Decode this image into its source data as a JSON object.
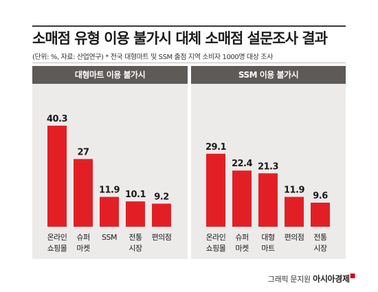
{
  "title": "소매점 유형 이용 불가시 대체 소매점 설문조사 결과",
  "subtitle": "(단위: %, 자료: 산업연구) * 전국 대형마트 및 SSM 출점 지역 소비자 1000명 대상 조사",
  "credit": {
    "label": "그래픽 문지원",
    "brand": "아시아경제"
  },
  "colors": {
    "bar": "#e31f26",
    "panel": "#ecebea",
    "header": "#5e5a58"
  },
  "chart_data": [
    {
      "type": "bar",
      "title": "대형마트 이용 불가시",
      "categories": [
        [
          "온라인",
          "쇼핑몰"
        ],
        [
          "슈퍼",
          "마켓"
        ],
        [
          "SSM"
        ],
        [
          "전통",
          "시장"
        ],
        [
          "편의점"
        ]
      ],
      "values": [
        40.3,
        27,
        11.9,
        10.1,
        9.2
      ],
      "value_labels": [
        "40.3",
        "27",
        "11.9",
        "10.1",
        "9.2"
      ],
      "ylim": [
        0,
        45
      ]
    },
    {
      "type": "bar",
      "title": "SSM 이용 불가시",
      "categories": [
        [
          "온라인",
          "쇼핑몰"
        ],
        [
          "슈퍼",
          "마켓"
        ],
        [
          "대형",
          "마트"
        ],
        [
          "편의점"
        ],
        [
          "전통",
          "시장"
        ]
      ],
      "values": [
        29.1,
        22.4,
        21.3,
        11.9,
        9.6
      ],
      "value_labels": [
        "29.1",
        "22.4",
        "21.3",
        "11.9",
        "9.6"
      ],
      "ylim": [
        0,
        45
      ]
    }
  ]
}
